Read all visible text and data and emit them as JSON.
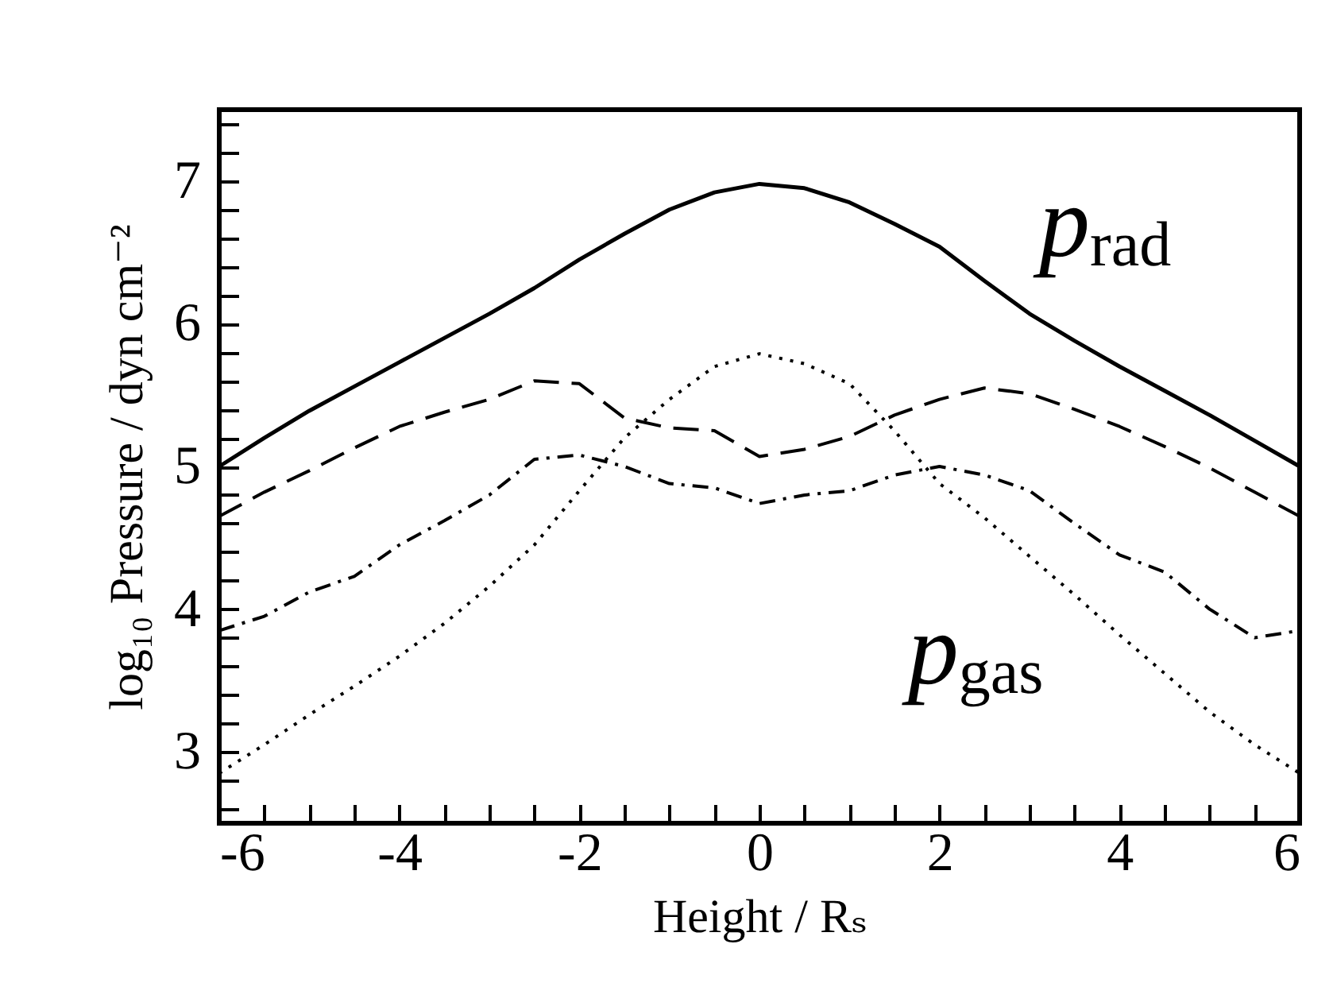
{
  "chart_data": {
    "type": "line",
    "xlabel": "Height / Rₛ",
    "ylabel": "log₁₀ Pressure / dyn cm⁻²",
    "x": [
      -6,
      -5.5,
      -5,
      -4.5,
      -4,
      -3.5,
      -3,
      -2.5,
      -2,
      -1.5,
      -1,
      -0.5,
      0,
      0.5,
      1,
      1.5,
      2,
      2.5,
      3,
      3.5,
      4,
      4.5,
      5,
      5.5,
      6
    ],
    "series": [
      {
        "color": "#000000",
        "line_style": "solid",
        "values": [
          5.0,
          5.2,
          5.39,
          5.56,
          5.73,
          5.9,
          6.07,
          6.25,
          6.45,
          6.63,
          6.8,
          6.92,
          6.98,
          6.95,
          6.85,
          6.7,
          6.54,
          6.3,
          6.07,
          5.88,
          5.7,
          5.53,
          5.36,
          5.18,
          5.0
        ]
      },
      {
        "color": "#000000",
        "line_style": "dashed",
        "values": [
          4.65,
          4.82,
          4.97,
          5.13,
          5.28,
          5.38,
          5.47,
          5.6,
          5.58,
          5.34,
          5.27,
          5.25,
          5.07,
          5.12,
          5.21,
          5.36,
          5.47,
          5.55,
          5.51,
          5.4,
          5.28,
          5.14,
          4.99,
          4.82,
          4.65
        ]
      },
      {
        "color": "#000000",
        "line_style": "dotted",
        "values": [
          2.85,
          3.05,
          3.26,
          3.46,
          3.67,
          3.9,
          4.16,
          4.45,
          4.83,
          5.2,
          5.47,
          5.7,
          5.79,
          5.72,
          5.58,
          5.25,
          4.88,
          4.64,
          4.37,
          4.1,
          3.82,
          3.55,
          3.28,
          3.05,
          2.85
        ]
      },
      {
        "color": "#000000",
        "line_style": "dashdot",
        "values": [
          3.85,
          3.95,
          4.12,
          4.23,
          4.45,
          4.62,
          4.8,
          5.05,
          5.08,
          5.0,
          4.88,
          4.85,
          4.74,
          4.8,
          4.83,
          4.94,
          5.0,
          4.94,
          4.83,
          4.6,
          4.38,
          4.26,
          4.0,
          3.8,
          3.85
        ]
      }
    ],
    "xlim": [
      -6,
      6
    ],
    "xticks": [
      -6,
      {
        "value": -5.5,
        "label": null
      },
      {
        "value": -5,
        "label": null
      },
      {
        "value": -4.5,
        "label": null
      },
      -4,
      {
        "value": -3.5,
        "label": null
      },
      {
        "value": -3,
        "label": null
      },
      {
        "value": -2.5,
        "label": null
      },
      -2,
      {
        "value": -1.5,
        "label": null
      },
      {
        "value": -1,
        "label": null
      },
      {
        "value": -0.5,
        "label": null
      },
      0,
      {
        "value": 0.5,
        "label": null
      },
      {
        "value": 1,
        "label": null
      },
      {
        "value": 1.5,
        "label": null
      },
      2,
      {
        "value": 2.5,
        "label": null
      },
      {
        "value": 3,
        "label": null
      },
      {
        "value": 3.5,
        "label": null
      },
      4,
      {
        "value": 4.5,
        "label": null
      },
      {
        "value": 5,
        "label": null
      },
      {
        "value": 5.5,
        "label": null
      },
      6
    ],
    "ylim": [
      2.5,
      7.5
    ],
    "yticks": [
      {
        "value": 2.6,
        "label": null
      },
      {
        "value": 2.8,
        "label": null
      },
      3,
      {
        "value": 3.2,
        "label": null
      },
      {
        "value": 3.4,
        "label": null
      },
      {
        "value": 3.6,
        "label": null
      },
      {
        "value": 3.8,
        "label": null
      },
      4,
      {
        "value": 4.2,
        "label": null
      },
      {
        "value": 4.4,
        "label": null
      },
      {
        "value": 4.6,
        "label": null
      },
      {
        "value": 4.8,
        "label": null
      },
      5,
      {
        "value": 5.2,
        "label": null
      },
      {
        "value": 5.4,
        "label": null
      },
      {
        "value": 5.6,
        "label": null
      },
      {
        "value": 5.8,
        "label": null
      },
      6,
      {
        "value": 6.2,
        "label": null
      },
      {
        "value": 6.4,
        "label": null
      },
      {
        "value": 6.6,
        "label": null
      },
      {
        "value": 6.8,
        "label": null
      },
      7,
      {
        "value": 7.2,
        "label": null
      },
      {
        "value": 7.4,
        "label": null
      }
    ],
    "annotations": [
      "p$_{rad}$",
      "p$_{gas}$"
    ],
    "grid": false
  }
}
